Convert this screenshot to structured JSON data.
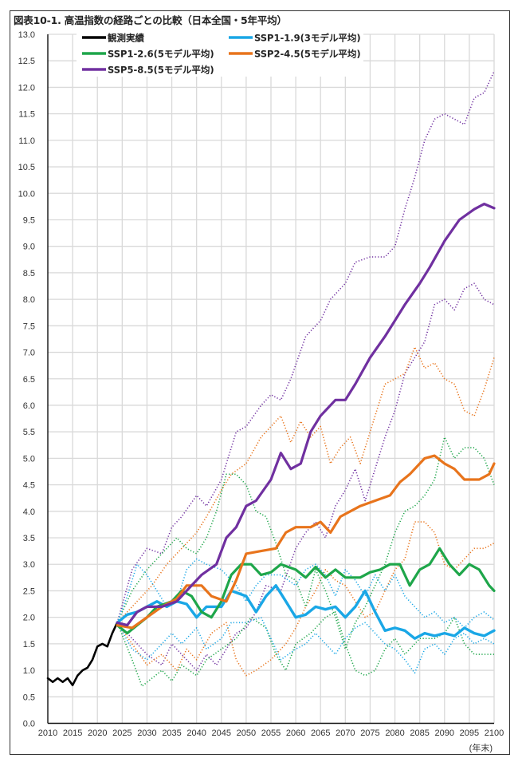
{
  "title": "図表10-1. 高温指数の経路ごとの比較（日本全国・5年平均）",
  "chart_data": {
    "type": "line",
    "title": "図表10-1. 高温指数の経路ごとの比較（日本全国・5年平均）",
    "xlabel": "(年末)",
    "ylabel": "",
    "xlim": [
      2010,
      2100
    ],
    "ylim": [
      0.0,
      13.0
    ],
    "xticks": [
      "2010",
      "2015",
      "2020",
      "2025",
      "2030",
      "2035",
      "2040",
      "2045",
      "2050",
      "2055",
      "2060",
      "2065",
      "2070",
      "2075",
      "2080",
      "2085",
      "2090",
      "2095",
      "2100"
    ],
    "yticks": [
      "0.0",
      "0.5",
      "1.0",
      "1.5",
      "2.0",
      "2.5",
      "3.0",
      "3.5",
      "4.0",
      "4.5",
      "5.0",
      "5.5",
      "6.0",
      "6.5",
      "7.0",
      "7.5",
      "8.0",
      "8.5",
      "9.0",
      "9.5",
      "10.0",
      "10.5",
      "11.0",
      "11.5",
      "12.0",
      "12.5",
      "13.0"
    ],
    "grid": true,
    "legend_position": "top-left inside",
    "legend": [
      {
        "label": "観測実績",
        "color": "#000000"
      },
      {
        "label": "SSP1-1.9(3モデル平均)",
        "color": "#1aa7e6"
      },
      {
        "label": "SSP1-2.6(5モデル平均)",
        "color": "#1ea64a"
      },
      {
        "label": "SSP2-4.5(5モデル平均)",
        "color": "#e8741c"
      },
      {
        "label": "SSP5-8.5(5モデル平均)",
        "color": "#7030a0"
      }
    ],
    "series": [
      {
        "name": "観測実績",
        "color": "#000000",
        "style": "solid",
        "width": 2.6,
        "x": [
          2010,
          2011,
          2012,
          2013,
          2014,
          2015,
          2016,
          2017,
          2018,
          2019,
          2020,
          2021,
          2022,
          2023,
          2024
        ],
        "y": [
          0.85,
          0.78,
          0.85,
          0.78,
          0.85,
          0.72,
          0.9,
          1.0,
          1.05,
          1.2,
          1.45,
          1.5,
          1.45,
          1.7,
          1.9
        ]
      },
      {
        "name": "SSP5-8.5 model (high)",
        "color": "#7030a0",
        "style": "dotted",
        "width": 1.6,
        "x": [
          2024,
          2027,
          2030,
          2033,
          2035,
          2037,
          2040,
          2042,
          2045,
          2048,
          2050,
          2053,
          2055,
          2057,
          2059,
          2062,
          2065,
          2067,
          2070,
          2072,
          2075,
          2078,
          2080,
          2082,
          2084,
          2086,
          2088,
          2090,
          2092,
          2094,
          2096,
          2098,
          2100
        ],
        "y": [
          1.9,
          2.9,
          3.3,
          3.2,
          3.7,
          3.9,
          4.3,
          4.1,
          4.6,
          5.5,
          5.6,
          6.0,
          6.2,
          6.1,
          6.5,
          7.3,
          7.6,
          8.0,
          8.3,
          8.7,
          8.8,
          8.8,
          9.0,
          9.7,
          10.3,
          11.0,
          11.4,
          11.5,
          11.4,
          11.3,
          11.8,
          11.9,
          12.3
        ]
      },
      {
        "name": "SSP5-8.5 model (low)",
        "color": "#7030a0",
        "style": "dotted",
        "width": 1.6,
        "x": [
          2024,
          2027,
          2030,
          2033,
          2035,
          2037,
          2040,
          2042,
          2044,
          2046,
          2048,
          2050,
          2052,
          2054,
          2057,
          2060,
          2062,
          2064,
          2066,
          2068,
          2070,
          2072,
          2074,
          2076,
          2078,
          2080,
          2082,
          2084,
          2086,
          2088,
          2090,
          2092,
          2094,
          2096,
          2098,
          2100
        ],
        "y": [
          1.9,
          1.6,
          1.3,
          1.1,
          1.5,
          1.3,
          1.0,
          1.3,
          1.1,
          1.4,
          1.7,
          1.8,
          2.1,
          2.6,
          2.5,
          3.3,
          3.6,
          3.8,
          3.5,
          4.1,
          4.4,
          4.8,
          4.2,
          4.8,
          5.4,
          5.9,
          6.6,
          6.9,
          7.2,
          7.9,
          8.0,
          7.8,
          8.2,
          8.3,
          8.0,
          7.9
        ]
      },
      {
        "name": "SSP2-4.5 model (high)",
        "color": "#e8741c",
        "style": "dotted",
        "width": 1.6,
        "x": [
          2024,
          2028,
          2031,
          2034,
          2037,
          2040,
          2042,
          2045,
          2047,
          2050,
          2053,
          2055,
          2057,
          2059,
          2061,
          2063,
          2065,
          2067,
          2069,
          2071,
          2073,
          2075,
          2078,
          2080,
          2082,
          2084,
          2086,
          2088,
          2090,
          2092,
          2094,
          2096,
          2098,
          2100
        ],
        "y": [
          1.9,
          2.3,
          2.6,
          3.0,
          3.3,
          3.6,
          3.9,
          4.4,
          4.7,
          4.9,
          5.4,
          5.6,
          5.8,
          5.3,
          5.7,
          5.4,
          5.6,
          4.9,
          5.2,
          5.4,
          4.9,
          5.5,
          6.4,
          6.5,
          6.6,
          7.1,
          6.7,
          6.8,
          6.5,
          6.4,
          5.9,
          5.8,
          6.3,
          6.9
        ]
      },
      {
        "name": "SSP2-4.5 model (low)",
        "color": "#e8741c",
        "style": "dotted",
        "width": 1.6,
        "x": [
          2024,
          2027,
          2030,
          2033,
          2036,
          2038,
          2040,
          2043,
          2046,
          2048,
          2050,
          2052,
          2055,
          2058,
          2060,
          2062,
          2064,
          2066,
          2068,
          2070,
          2072,
          2074,
          2076,
          2078,
          2080,
          2082,
          2084,
          2086,
          2088,
          2090,
          2092,
          2094,
          2096,
          2098,
          2100
        ],
        "y": [
          1.9,
          1.5,
          1.1,
          1.3,
          1.0,
          1.4,
          1.2,
          1.7,
          1.9,
          1.2,
          0.9,
          1.0,
          1.2,
          1.5,
          1.8,
          2.2,
          2.5,
          2.9,
          2.7,
          2.6,
          2.3,
          2.0,
          2.1,
          2.5,
          2.9,
          3.1,
          3.8,
          3.8,
          3.6,
          3.0,
          2.9,
          3.1,
          3.3,
          3.3,
          3.4
        ]
      },
      {
        "name": "SSP1-2.6 model (high)",
        "color": "#1ea64a",
        "style": "dotted",
        "width": 1.6,
        "x": [
          2024,
          2027,
          2030,
          2033,
          2036,
          2038,
          2040,
          2042,
          2044,
          2046,
          2048,
          2050,
          2052,
          2054,
          2056,
          2058,
          2060,
          2062,
          2064,
          2066,
          2068,
          2070,
          2072,
          2074,
          2076,
          2078,
          2080,
          2082,
          2084,
          2086,
          2088,
          2090,
          2092,
          2094,
          2096,
          2098,
          2100
        ],
        "y": [
          1.9,
          2.5,
          2.9,
          3.2,
          3.5,
          3.3,
          3.2,
          3.5,
          4.0,
          4.7,
          4.7,
          4.5,
          4.0,
          3.9,
          3.4,
          2.8,
          2.7,
          2.2,
          2.9,
          2.5,
          2.0,
          1.4,
          1.9,
          2.2,
          2.6,
          3.0,
          3.6,
          4.0,
          4.1,
          4.3,
          4.6,
          5.4,
          5.0,
          5.2,
          5.2,
          5.0,
          4.5
        ]
      },
      {
        "name": "SSP1-2.6 model (low)",
        "color": "#1ea64a",
        "style": "dotted",
        "width": 1.6,
        "x": [
          2024,
          2027,
          2029,
          2031,
          2033,
          2035,
          2037,
          2040,
          2042,
          2045,
          2048,
          2051,
          2054,
          2056,
          2058,
          2060,
          2063,
          2066,
          2068,
          2070,
          2072,
          2074,
          2076,
          2078,
          2080,
          2082,
          2085,
          2088,
          2090,
          2092,
          2094,
          2096,
          2098,
          2100
        ],
        "y": [
          1.9,
          1.2,
          0.7,
          0.85,
          1.0,
          0.8,
          1.1,
          0.9,
          1.2,
          1.4,
          1.6,
          2.0,
          1.8,
          1.3,
          1.0,
          1.5,
          1.7,
          2.0,
          2.1,
          1.5,
          1.0,
          0.9,
          1.0,
          1.4,
          1.6,
          1.3,
          1.6,
          1.6,
          1.7,
          2.0,
          1.5,
          1.3,
          1.3,
          1.3
        ]
      },
      {
        "name": "SSP1-1.9 model (high)",
        "color": "#1aa7e6",
        "style": "dotted",
        "width": 1.6,
        "x": [
          2024,
          2026,
          2028,
          2030,
          2032,
          2034,
          2036,
          2038,
          2040,
          2042,
          2045,
          2048,
          2050,
          2052,
          2054,
          2057,
          2060,
          2062,
          2064,
          2066,
          2068,
          2070,
          2072,
          2074,
          2076,
          2078,
          2080,
          2082,
          2084,
          2086,
          2088,
          2090,
          2092,
          2094,
          2096,
          2098,
          2100
        ],
        "y": [
          1.9,
          2.4,
          3.0,
          2.8,
          2.5,
          2.2,
          2.3,
          2.9,
          3.1,
          3.0,
          2.9,
          2.6,
          2.3,
          2.6,
          2.8,
          2.8,
          2.6,
          2.9,
          3.0,
          2.8,
          2.4,
          2.9,
          2.7,
          2.4,
          2.8,
          2.5,
          2.8,
          2.4,
          2.2,
          2.0,
          2.1,
          1.9,
          2.0,
          1.8,
          2.0,
          2.1,
          1.95
        ]
      },
      {
        "name": "SSP1-1.9 model (low)",
        "color": "#1aa7e6",
        "style": "dotted",
        "width": 1.6,
        "x": [
          2024,
          2027,
          2030,
          2033,
          2035,
          2037,
          2040,
          2042,
          2045,
          2047,
          2050,
          2053,
          2055,
          2057,
          2060,
          2062,
          2064,
          2066,
          2068,
          2070,
          2072,
          2074,
          2076,
          2078,
          2080,
          2082,
          2084,
          2086,
          2088,
          2090,
          2092,
          2094,
          2096,
          2098,
          2100
        ],
        "y": [
          1.9,
          1.4,
          1.2,
          1.5,
          1.7,
          1.5,
          1.8,
          1.4,
          1.6,
          1.9,
          1.9,
          2.0,
          1.6,
          1.2,
          1.4,
          1.5,
          1.7,
          1.5,
          1.3,
          1.6,
          1.8,
          1.9,
          1.7,
          1.5,
          1.4,
          1.2,
          0.95,
          1.4,
          1.5,
          1.3,
          1.6,
          1.7,
          1.5,
          1.6,
          1.5
        ]
      },
      {
        "name": "SSP1-1.9(3モデル平均)",
        "color": "#1aa7e6",
        "style": "solid",
        "width": 3.4,
        "x": [
          2024,
          2026,
          2028,
          2030,
          2032,
          2034,
          2036,
          2038,
          2040,
          2042,
          2045,
          2047,
          2050,
          2052,
          2054,
          2056,
          2058,
          2060,
          2062,
          2064,
          2066,
          2068,
          2070,
          2072,
          2074,
          2076,
          2078,
          2080,
          2082,
          2084,
          2086,
          2088,
          2090,
          2092,
          2094,
          2096,
          2098,
          2100
        ],
        "y": [
          1.9,
          2.05,
          2.1,
          2.2,
          2.3,
          2.2,
          2.3,
          2.25,
          2.0,
          2.2,
          2.2,
          2.5,
          2.4,
          2.1,
          2.4,
          2.6,
          2.3,
          2.0,
          2.05,
          2.2,
          2.15,
          2.2,
          2.0,
          2.2,
          2.5,
          2.1,
          1.75,
          1.8,
          1.75,
          1.6,
          1.7,
          1.65,
          1.7,
          1.65,
          1.8,
          1.7,
          1.65,
          1.75
        ]
      },
      {
        "name": "SSP1-2.6(5モデル平均)",
        "color": "#1ea64a",
        "style": "solid",
        "width": 3.2,
        "x": [
          2024,
          2026,
          2028,
          2030,
          2032,
          2035,
          2037,
          2039,
          2041,
          2043,
          2045,
          2047,
          2049,
          2051,
          2053,
          2055,
          2057,
          2060,
          2062,
          2064,
          2066,
          2068,
          2070,
          2073,
          2075,
          2077,
          2079,
          2081,
          2083,
          2085,
          2087,
          2089,
          2091,
          2093,
          2095,
          2097,
          2099,
          2100
        ],
        "y": [
          1.85,
          1.7,
          1.85,
          2.0,
          2.2,
          2.3,
          2.5,
          2.4,
          2.1,
          2.0,
          2.3,
          2.8,
          3.0,
          3.0,
          2.8,
          2.85,
          3.0,
          2.9,
          2.75,
          2.95,
          2.75,
          2.9,
          2.75,
          2.75,
          2.85,
          2.9,
          3.0,
          3.0,
          2.6,
          2.9,
          3.0,
          3.3,
          3.0,
          2.8,
          3.0,
          2.9,
          2.6,
          2.5
        ]
      },
      {
        "name": "SSP2-4.5(5モデル平均)",
        "color": "#e8741c",
        "style": "solid",
        "width": 3.2,
        "x": [
          2024,
          2027,
          2030,
          2033,
          2036,
          2038,
          2041,
          2043,
          2046,
          2048,
          2050,
          2053,
          2056,
          2058,
          2060,
          2063,
          2065,
          2067,
          2069,
          2071,
          2073,
          2076,
          2079,
          2081,
          2083,
          2086,
          2088,
          2090,
          2092,
          2094,
          2097,
          2099,
          2100
        ],
        "y": [
          1.85,
          1.8,
          2.0,
          2.2,
          2.35,
          2.6,
          2.6,
          2.4,
          2.3,
          2.7,
          3.2,
          3.25,
          3.3,
          3.6,
          3.7,
          3.7,
          3.8,
          3.6,
          3.9,
          4.0,
          4.1,
          4.2,
          4.3,
          4.55,
          4.7,
          5.0,
          5.05,
          4.9,
          4.8,
          4.6,
          4.6,
          4.7,
          4.9
        ]
      },
      {
        "name": "SSP5-8.5(5モデル平均)",
        "color": "#7030a0",
        "style": "solid",
        "width": 3.2,
        "x": [
          2024,
          2026,
          2028,
          2030,
          2033,
          2036,
          2038,
          2041,
          2044,
          2046,
          2048,
          2050,
          2052,
          2055,
          2057,
          2059,
          2061,
          2063,
          2065,
          2068,
          2070,
          2072,
          2075,
          2078,
          2080,
          2082,
          2085,
          2087,
          2090,
          2093,
          2096,
          2098,
          2100
        ],
        "y": [
          1.9,
          1.85,
          2.1,
          2.2,
          2.2,
          2.3,
          2.5,
          2.8,
          3.0,
          3.5,
          3.7,
          4.1,
          4.2,
          4.6,
          5.1,
          4.8,
          4.9,
          5.5,
          5.8,
          6.1,
          6.1,
          6.4,
          6.9,
          7.3,
          7.6,
          7.9,
          8.3,
          8.6,
          9.1,
          9.5,
          9.7,
          9.8,
          9.72
        ]
      }
    ]
  }
}
